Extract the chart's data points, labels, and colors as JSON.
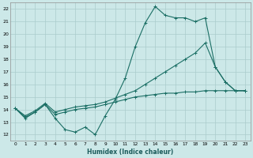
{
  "xlabel": "Humidex (Indice chaleur)",
  "bg_color": "#cce8e8",
  "grid_color": "#aacccc",
  "line_color": "#1a6e64",
  "xlim": [
    -0.5,
    23.5
  ],
  "ylim": [
    11.5,
    22.5
  ],
  "xticks": [
    0,
    1,
    2,
    3,
    4,
    5,
    6,
    7,
    8,
    9,
    10,
    11,
    12,
    13,
    14,
    15,
    16,
    17,
    18,
    19,
    20,
    21,
    22,
    23
  ],
  "yticks": [
    12,
    13,
    14,
    15,
    16,
    17,
    18,
    19,
    20,
    21,
    22
  ],
  "line1_x": [
    0,
    1,
    2,
    3,
    4,
    5,
    6,
    7,
    8,
    9,
    10,
    11,
    12,
    13,
    14,
    15,
    16,
    17,
    18,
    19,
    20,
    21,
    22,
    23
  ],
  "line1_y": [
    14.1,
    13.3,
    13.8,
    14.4,
    13.3,
    12.4,
    12.2,
    12.6,
    12.0,
    13.5,
    14.8,
    16.5,
    19.0,
    20.9,
    22.2,
    21.5,
    21.3,
    21.3,
    21.0,
    21.3,
    17.4,
    16.2,
    15.5,
    15.5
  ],
  "line2_x": [
    0,
    1,
    2,
    3,
    4,
    5,
    6,
    7,
    8,
    9,
    10,
    11,
    12,
    13,
    14,
    15,
    16,
    17,
    18,
    19,
    20,
    21,
    22,
    23
  ],
  "line2_y": [
    14.1,
    13.4,
    13.8,
    14.4,
    13.6,
    13.8,
    14.0,
    14.1,
    14.2,
    14.4,
    14.6,
    14.8,
    15.0,
    15.1,
    15.2,
    15.3,
    15.3,
    15.4,
    15.4,
    15.5,
    15.5,
    15.5,
    15.5,
    15.5
  ],
  "line3_x": [
    0,
    1,
    2,
    3,
    4,
    5,
    6,
    7,
    8,
    9,
    10,
    11,
    12,
    13,
    14,
    15,
    16,
    17,
    18,
    19,
    20,
    21,
    22,
    23
  ],
  "line3_y": [
    14.1,
    13.5,
    13.9,
    14.5,
    13.8,
    14.0,
    14.2,
    14.3,
    14.4,
    14.6,
    14.9,
    15.2,
    15.5,
    16.0,
    16.5,
    17.0,
    17.5,
    18.0,
    18.5,
    19.3,
    17.4,
    16.2,
    15.5,
    15.5
  ]
}
